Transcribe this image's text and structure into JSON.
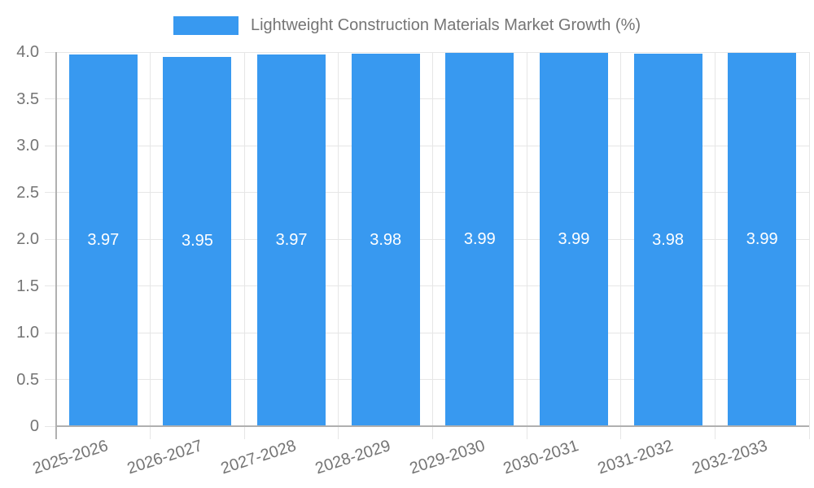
{
  "chart_data": {
    "type": "bar",
    "title": "Lightweight Construction Materials Market Growth (%)",
    "categories": [
      "2025-2026",
      "2026-2027",
      "2027-2028",
      "2028-2029",
      "2029-2030",
      "2030-2031",
      "2031-2032",
      "2032-2033"
    ],
    "series": [
      {
        "name": "Lightweight Construction Materials Market Growth (%)",
        "values": [
          3.97,
          3.95,
          3.97,
          3.98,
          3.99,
          3.99,
          3.98,
          3.99
        ],
        "value_labels": [
          "3.97",
          "3.95",
          "3.97",
          "3.98",
          "3.99",
          "3.99",
          "3.98",
          "3.99"
        ]
      }
    ],
    "xlabel": "",
    "ylabel": "",
    "ylim": [
      0,
      4
    ],
    "y_ticks": [
      {
        "value": 0,
        "label": "0"
      },
      {
        "value": 0.5,
        "label": "0.5"
      },
      {
        "value": 1,
        "label": "1.0"
      },
      {
        "value": 1.5,
        "label": "1.5"
      },
      {
        "value": 2,
        "label": "2.0"
      },
      {
        "value": 2.5,
        "label": "2.5"
      },
      {
        "value": 3,
        "label": "3.0"
      },
      {
        "value": 3.5,
        "label": "3.5"
      },
      {
        "value": 4,
        "label": "4.0"
      }
    ],
    "grid": true,
    "legend_position": "top",
    "colors": {
      "bar": "#3899F0",
      "text": "#757575",
      "grid": "#E6E6E6",
      "axis": "#B0B0B0",
      "value_label": "#FFFFFF"
    }
  }
}
